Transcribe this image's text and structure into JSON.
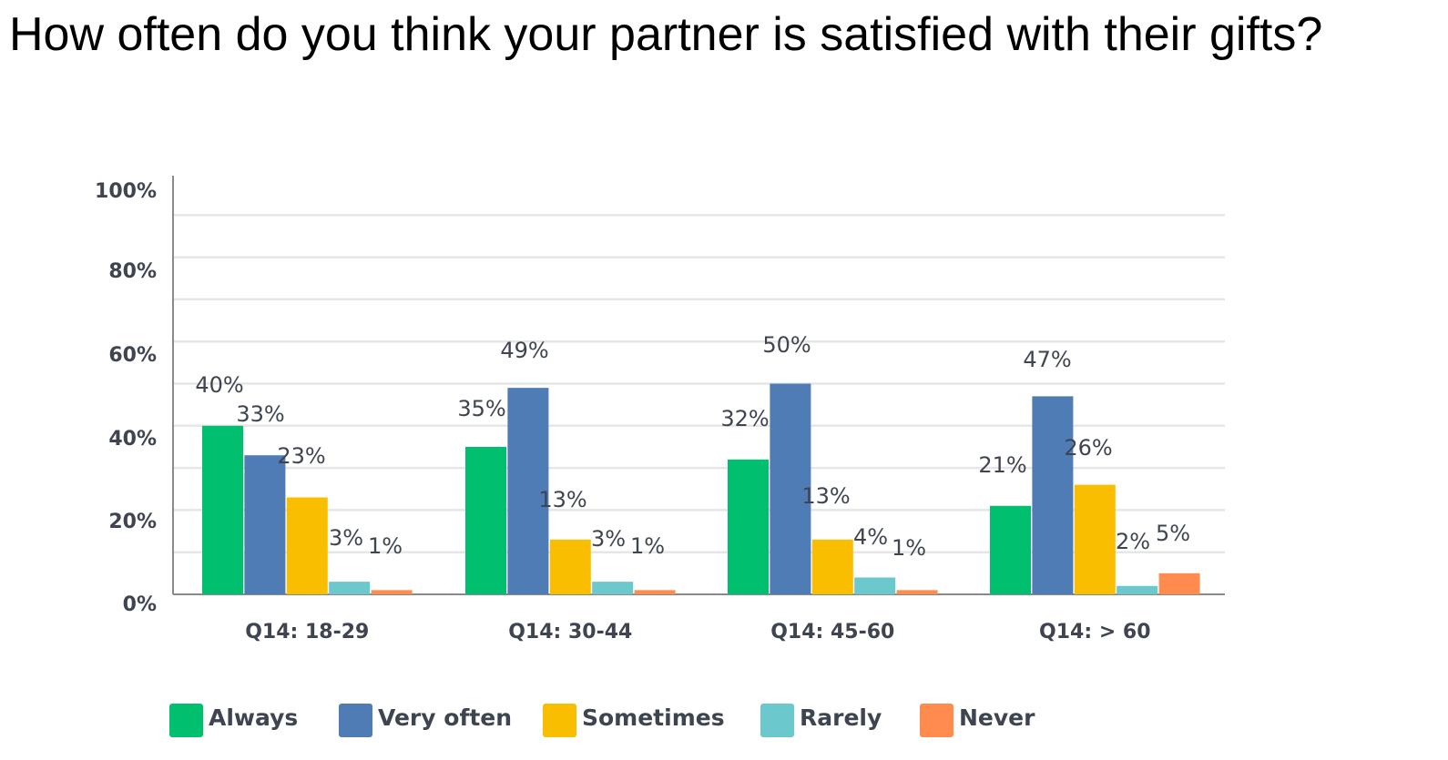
{
  "title": "How often do you think your partner is satisfied with their gifts?",
  "chart_data": {
    "type": "bar",
    "title": "How often do you think your partner is satisfied with their gifts?",
    "categories": [
      "Q14: 18-29",
      "Q14: 30-44",
      "Q14: 45-60",
      "Q14: > 60"
    ],
    "series": [
      {
        "name": "Always",
        "color": "#00bf6f",
        "values": [
          40,
          35,
          32,
          21
        ],
        "labels": [
          "40%",
          "35%",
          "32%",
          "21%"
        ]
      },
      {
        "name": "Very often",
        "color": "#507cb6",
        "values": [
          33,
          49,
          50,
          47
        ],
        "labels": [
          "33%",
          "49%",
          "50%",
          "47%"
        ]
      },
      {
        "name": "Sometimes",
        "color": "#f9be00",
        "values": [
          23,
          13,
          13,
          26
        ],
        "labels": [
          "23%",
          "13%",
          "13%",
          "26%"
        ]
      },
      {
        "name": "Rarely",
        "color": "#6bc8cd",
        "values": [
          3,
          3,
          4,
          2
        ],
        "labels": [
          "3%",
          "3%",
          "4%",
          "2%"
        ]
      },
      {
        "name": "Never",
        "color": "#ff8b4f",
        "values": [
          1,
          1,
          1,
          5
        ],
        "labels": [
          "1%",
          "1%",
          "1%",
          "5%"
        ]
      }
    ],
    "y_ticks": [
      "0%",
      "20%",
      "40%",
      "60%",
      "80%",
      "100%"
    ],
    "ylim": [
      0,
      100
    ],
    "grid": true,
    "legend": "bottom"
  }
}
